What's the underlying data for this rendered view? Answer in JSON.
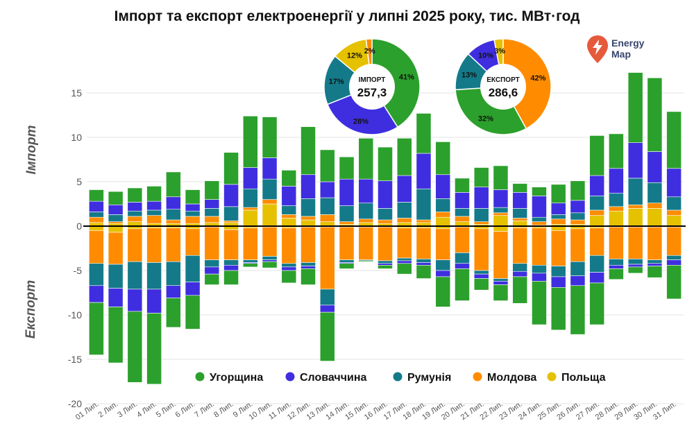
{
  "title": "Імпорт та експорт електроенергії у липні 2025 року, тис. МВт·год",
  "ylabel_import": "Імпорт",
  "ylabel_export": "Експорт",
  "logo": {
    "line1": "Energy",
    "line2": "Map",
    "icon": "lightning-pin-icon",
    "color": "#e65a3c"
  },
  "colors": {
    "Угорщина": "#2ca02c",
    "Словаччина": "#3f2ee0",
    "Румунія": "#147a8a",
    "Молдова": "#ff8c00",
    "Польща": "#e6c100"
  },
  "chart_data": [
    {
      "type": "bar",
      "stacked": true,
      "ylim": [
        -20,
        18
      ],
      "yticks": [
        -20,
        -15,
        -10,
        -5,
        0,
        5,
        10,
        15
      ],
      "grid": true,
      "legend_position": "bottom-center",
      "categories": [
        "01 Лип.",
        "2 Лип.",
        "3 Лип.",
        "4 Лип.",
        "5 Лип.",
        "6 Лип.",
        "7 Лип.",
        "8 Лип.",
        "9 Лип.",
        "10 Лип.",
        "11 Лип.",
        "12 Лип.",
        "13 Лип.",
        "14 Лип.",
        "15 Лип.",
        "16 Лип.",
        "17 Лип.",
        "18 Лип.",
        "19 Лип.",
        "20 Лип.",
        "21 Лип.",
        "22 Лип.",
        "23 Лип.",
        "24 Лип.",
        "25 Лип.",
        "26 Лип.",
        "27 Лип.",
        "28 Лип.",
        "29 Лип.",
        "30 Лип.",
        "31 Лип."
      ],
      "stack_order": [
        "Польща",
        "Молдова",
        "Румунія",
        "Словаччина",
        "Угорщина"
      ],
      "series": [
        {
          "name": "Угорщина",
          "import": [
            1.3,
            1.5,
            1.6,
            1.7,
            2.8,
            1.6,
            2.1,
            3.6,
            5.8,
            4.6,
            1.8,
            5.4,
            3.6,
            2.5,
            4.6,
            3.8,
            4.2,
            4.5,
            3.7,
            1.6,
            2.2,
            2.7,
            1.0,
            1.0,
            2.1,
            2.2,
            4.5,
            3.9,
            7.9,
            8.3,
            6.4
          ],
          "export": [
            -5.9,
            -6.3,
            -8.0,
            -8.0,
            -3.3,
            -3.8,
            -1.2,
            -1.6,
            -0.4,
            -0.7,
            -1.4,
            -1.8,
            -5.5,
            -0.6,
            -0.1,
            -0.4,
            -1.2,
            -1.5,
            -3.4,
            -3.6,
            -1.3,
            -1.8,
            -3.0,
            -4.9,
            -4.8,
            -5.5,
            -4.7,
            -1.2,
            -0.7,
            -1.3,
            -3.8
          ]
        },
        {
          "name": "Словаччина",
          "import": [
            1.2,
            1.1,
            1.0,
            1.0,
            1.4,
            0.8,
            1.0,
            2.5,
            2.4,
            2.4,
            2.2,
            2.7,
            1.8,
            3.0,
            2.7,
            3.1,
            3.0,
            4.0,
            2.7,
            1.8,
            2.4,
            2.0,
            1.8,
            2.4,
            1.3,
            1.4,
            2.3,
            2.8,
            4.0,
            3.5,
            3.2
          ],
          "export": [
            -1.9,
            -2.1,
            -2.5,
            -2.7,
            -1.4,
            -1.5,
            -0.8,
            -0.6,
            -0.1,
            -0.2,
            -0.4,
            -0.3,
            -0.8,
            -0.1,
            0,
            -0.2,
            -0.3,
            -0.3,
            -0.7,
            -0.6,
            -0.5,
            -0.4,
            -0.6,
            -0.9,
            -1.2,
            -1.1,
            -1.2,
            -0.4,
            -0.3,
            -0.3,
            -0.6
          ]
        },
        {
          "name": "Румунія",
          "import": [
            0.6,
            0.8,
            0.6,
            0.6,
            1.2,
            0.6,
            0.9,
            1.6,
            2.1,
            2.3,
            1.0,
            2.0,
            1.9,
            1.8,
            1.8,
            1.3,
            1.8,
            3.5,
            1.5,
            0.9,
            1.5,
            0.6,
            1.1,
            0.5,
            0.5,
            0.8,
            1.6,
            1.5,
            3.0,
            2.3,
            1.5
          ],
          "export": [
            -2.5,
            -2.7,
            -3.1,
            -3.0,
            -2.7,
            -3.0,
            -0.8,
            -0.6,
            -0.3,
            -0.4,
            -0.4,
            -0.4,
            -1.8,
            -0.3,
            -0.1,
            -0.3,
            -0.3,
            -0.4,
            -1.2,
            -1.2,
            -0.4,
            -0.3,
            -0.9,
            -0.9,
            -1.2,
            -1.6,
            -1.9,
            -0.7,
            -0.6,
            -0.4,
            -0.5
          ]
        },
        {
          "name": "Молдова",
          "import": [
            0.6,
            0.2,
            0.6,
            0.9,
            0.4,
            0.8,
            0.7,
            0.2,
            0.3,
            0.5,
            0.4,
            0.4,
            0.8,
            0.3,
            0.4,
            0.4,
            0.5,
            0.3,
            0.6,
            0.6,
            0.3,
            0.3,
            0.3,
            0.4,
            0.6,
            0.5,
            0.6,
            0.5,
            0.4,
            0.6,
            0.6
          ],
          "export": [
            -3.7,
            -3.6,
            -3.7,
            -3.9,
            -3.8,
            -3.0,
            -3.7,
            -3.4,
            -3.6,
            -3.3,
            -4.0,
            -4.0,
            -7.0,
            -3.7,
            -3.7,
            -3.8,
            -3.4,
            -3.5,
            -3.5,
            -2.9,
            -4.7,
            -5.3,
            -4.0,
            -4.2,
            -4.0,
            -3.7,
            -3.1,
            -3.6,
            -3.6,
            -3.7,
            -3.2
          ]
        },
        {
          "name": "Польща",
          "import": [
            0.4,
            0.3,
            0.5,
            0.3,
            0.3,
            0.3,
            0.4,
            0.4,
            1.8,
            2.5,
            0.9,
            0.7,
            0.5,
            0.2,
            0.4,
            0.3,
            0.4,
            0.4,
            1.0,
            0.5,
            0.2,
            1.2,
            0.6,
            0.1,
            0.2,
            0.2,
            1.2,
            1.7,
            2.0,
            2.0,
            1.2
          ],
          "export": [
            -0.5,
            -0.7,
            -0.3,
            -0.2,
            -0.2,
            -0.3,
            -0.1,
            -0.4,
            -0.2,
            -0.1,
            -0.2,
            -0.1,
            -0.1,
            -0.1,
            -0.1,
            -0.1,
            -0.2,
            -0.2,
            -0.3,
            -0.1,
            -0.3,
            -0.6,
            -0.2,
            -0.2,
            -0.5,
            -0.3,
            -0.2,
            -0.1,
            -0.1,
            -0.1,
            -0.1
          ]
        }
      ]
    },
    {
      "type": "pie",
      "label": "ІМПОРТ",
      "total": "257,3",
      "slices": [
        {
          "name": "Угорщина",
          "value": 41,
          "label": "41%"
        },
        {
          "name": "Словаччина",
          "value": 28,
          "label": "28%"
        },
        {
          "name": "Румунія",
          "value": 17,
          "label": "17%"
        },
        {
          "name": "Польща",
          "value": 12,
          "label": "12%"
        },
        {
          "name": "Молдова",
          "value": 2,
          "label": "2%"
        }
      ]
    },
    {
      "type": "pie",
      "label": "ЕКСПОРТ",
      "total": "286,6",
      "slices": [
        {
          "name": "Молдова",
          "value": 42,
          "label": "42%"
        },
        {
          "name": "Угорщина",
          "value": 32,
          "label": "32%"
        },
        {
          "name": "Румунія",
          "value": 13,
          "label": "13%"
        },
        {
          "name": "Словаччина",
          "value": 10,
          "label": "10%"
        },
        {
          "name": "Польща",
          "value": 3,
          "label": "3%"
        }
      ]
    }
  ],
  "legend": [
    "Угорщина",
    "Словаччина",
    "Румунія",
    "Молдова",
    "Польща"
  ]
}
